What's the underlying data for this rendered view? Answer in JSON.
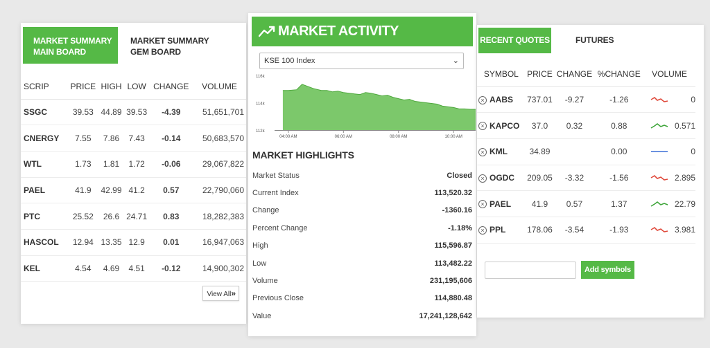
{
  "market_summary": {
    "tabs": [
      {
        "label_line1": "MARKET SUMMARY",
        "label_line2": "MAIN BOARD",
        "active": true
      },
      {
        "label_line1": "MARKET SUMMARY",
        "label_line2": "GEM BOARD",
        "active": false
      }
    ],
    "columns": [
      "SCRIP",
      "PRICE",
      "HIGH",
      "LOW",
      "CHANGE",
      "VOLUME"
    ],
    "rows": [
      {
        "scrip": "SSGC",
        "price": "39.53",
        "high": "44.89",
        "low": "39.53",
        "change": "-4.39",
        "volume": "51,651,701"
      },
      {
        "scrip": "CNERGY",
        "price": "7.55",
        "high": "7.86",
        "low": "7.43",
        "change": "-0.14",
        "volume": "50,683,570"
      },
      {
        "scrip": "WTL",
        "price": "1.73",
        "high": "1.81",
        "low": "1.72",
        "change": "-0.06",
        "volume": "29,067,822"
      },
      {
        "scrip": "PAEL",
        "price": "41.9",
        "high": "42.99",
        "low": "41.2",
        "change": "0.57",
        "volume": "22,790,060"
      },
      {
        "scrip": "PTC",
        "price": "25.52",
        "high": "26.6",
        "low": "24.71",
        "change": "0.83",
        "volume": "18,282,383"
      },
      {
        "scrip": "HASCOL",
        "price": "12.94",
        "high": "13.35",
        "low": "12.9",
        "change": "0.01",
        "volume": "16,947,063"
      },
      {
        "scrip": "KEL",
        "price": "4.54",
        "high": "4.69",
        "low": "4.51",
        "change": "-0.12",
        "volume": "14,900,302"
      }
    ],
    "view_all_label": "View All"
  },
  "market_activity": {
    "title": "MARKET ACTIVITY",
    "icon": "trending-up-icon",
    "index_select": "KSE 100 Index",
    "highlights_title": "MARKET HIGHLIGHTS",
    "highlights": [
      {
        "label": "Market Status",
        "value": "Closed"
      },
      {
        "label": "Current Index",
        "value": "113,520.32"
      },
      {
        "label": "Change",
        "value": "-1360.16"
      },
      {
        "label": "Percent Change",
        "value": "-1.18%"
      },
      {
        "label": "High",
        "value": "115,596.87"
      },
      {
        "label": "Low",
        "value": "113,482.22"
      },
      {
        "label": "Volume",
        "value": "231,195,606"
      },
      {
        "label": "Previous Close",
        "value": "114,880.48"
      },
      {
        "label": "Value",
        "value": "17,241,128,642"
      }
    ]
  },
  "chart_data": {
    "type": "area",
    "title": "",
    "xlabel": "",
    "ylabel": "",
    "x_ticks": [
      "04:00 AM",
      "06:00 AM",
      "08:00 AM",
      "10:00 AM"
    ],
    "y_ticks": [
      "116k",
      "114k",
      "112k"
    ],
    "ylim": [
      112000,
      116000
    ],
    "x_hours": [
      3.8,
      4.0,
      4.3,
      4.5,
      4.7,
      4.9,
      5.0,
      5.2,
      5.4,
      5.6,
      5.8,
      6.0,
      6.2,
      6.4,
      6.6,
      6.8,
      7.0,
      7.2,
      7.4,
      7.6,
      7.8,
      8.0,
      8.2,
      8.4,
      8.6,
      8.8,
      9.0,
      9.2,
      9.4,
      9.6,
      9.8,
      10.0,
      10.2,
      10.4,
      10.6,
      10.8
    ],
    "values": [
      114900,
      114900,
      114950,
      115350,
      115200,
      115050,
      115000,
      114900,
      114900,
      114800,
      114850,
      114750,
      114700,
      114650,
      114600,
      114750,
      114700,
      114600,
      114500,
      114550,
      114400,
      114300,
      114200,
      114250,
      114100,
      114050,
      114000,
      113950,
      113900,
      113750,
      113700,
      113650,
      113550,
      113550,
      113520,
      113520
    ],
    "fill_color": "#7cc86b",
    "line_color": "#4ea83d"
  },
  "recent_quotes": {
    "tabs": [
      {
        "label": "RECENT QUOTES",
        "active": true
      },
      {
        "label": "FUTURES",
        "active": false
      }
    ],
    "columns": [
      "SYMBOL",
      "PRICE",
      "CHANGE",
      "%CHANGE",
      "VOLUME"
    ],
    "rows": [
      {
        "symbol": "AABS",
        "price": "737.01",
        "change": "-9.27",
        "pct_change": "-1.26",
        "volume": "0",
        "trend": "down"
      },
      {
        "symbol": "KAPCO",
        "price": "37.0",
        "change": "0.32",
        "pct_change": "0.88",
        "volume": "0.571",
        "trend": "up"
      },
      {
        "symbol": "KML",
        "price": "34.89",
        "change": "",
        "pct_change": "0.00",
        "volume": "0",
        "trend": "flat"
      },
      {
        "symbol": "OGDC",
        "price": "209.05",
        "change": "-3.32",
        "pct_change": "-1.56",
        "volume": "2.895",
        "trend": "down"
      },
      {
        "symbol": "PAEL",
        "price": "41.9",
        "change": "0.57",
        "pct_change": "1.37",
        "volume": "22.79",
        "trend": "up"
      },
      {
        "symbol": "PPL",
        "price": "178.06",
        "change": "-3.54",
        "pct_change": "-1.93",
        "volume": "3.981",
        "trend": "down"
      }
    ],
    "symbol_input_placeholder": "",
    "add_button_label": "Add symbols"
  },
  "colors": {
    "accent": "#55b946",
    "negative": "#e3141e",
    "positive": "#3bab2e",
    "sparkline_down": "#e04a3c",
    "sparkline_up": "#3ea53a",
    "sparkline_flat": "#3a6fd6"
  }
}
